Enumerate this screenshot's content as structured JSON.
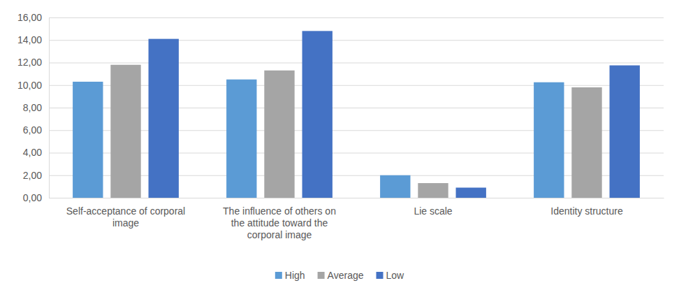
{
  "chart_data": {
    "type": "bar",
    "categories": [
      "Self-acceptance of corporal image",
      "The influence of others on the attitude toward the corporal image",
      "Lie scale",
      "Identity structure"
    ],
    "series": [
      {
        "name": "High",
        "color": "#5b9bd5",
        "values": [
          10.3,
          10.5,
          2.0,
          10.25
        ]
      },
      {
        "name": "Average",
        "color": "#a5a5a5",
        "values": [
          11.8,
          11.3,
          1.3,
          9.8
        ]
      },
      {
        "name": "Low",
        "color": "#4472c4",
        "values": [
          14.1,
          14.8,
          0.9,
          11.75
        ]
      }
    ],
    "ylim": [
      0,
      16
    ],
    "yticks": [
      {
        "value": 0,
        "label": "0,00"
      },
      {
        "value": 2,
        "label": "2,00"
      },
      {
        "value": 4,
        "label": "4,00"
      },
      {
        "value": 6,
        "label": "6,00"
      },
      {
        "value": 8,
        "label": "8,00"
      },
      {
        "value": 10,
        "label": "10,00"
      },
      {
        "value": 12,
        "label": "12,00"
      },
      {
        "value": 14,
        "label": "14,00"
      },
      {
        "value": 16,
        "label": "16,00"
      }
    ],
    "grid": true,
    "legend": "bottom"
  }
}
